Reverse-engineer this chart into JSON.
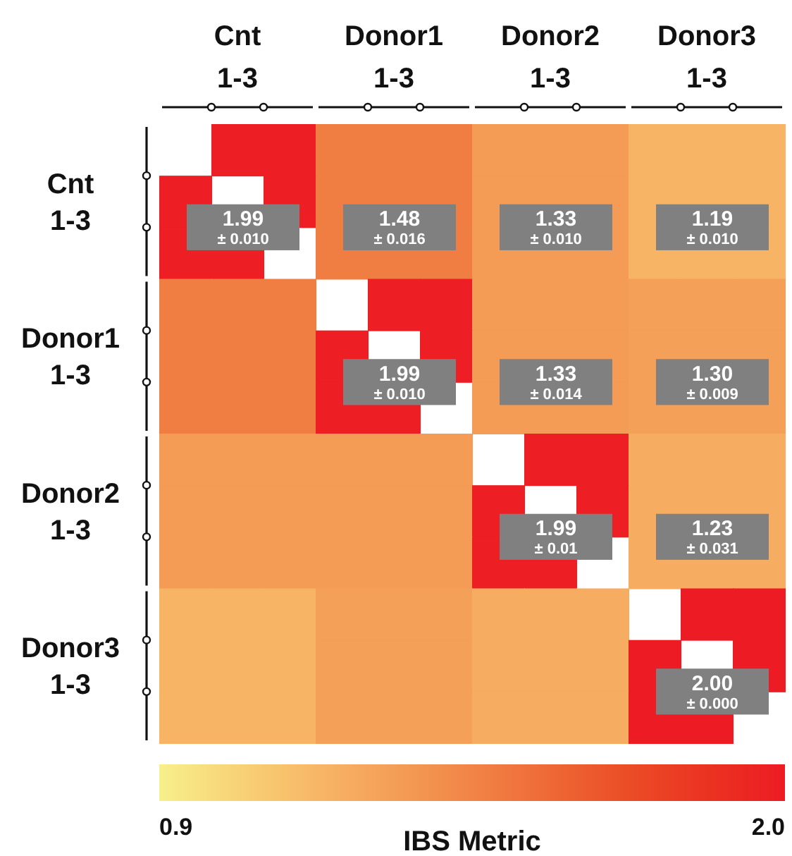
{
  "chart_data": {
    "type": "heatmap",
    "categories": [
      null,
      "Cnt 1-3",
      null,
      null,
      "Donor1 1-3",
      null,
      null,
      "Donor2 1-3",
      null,
      null,
      "Donor3 1-3",
      null
    ],
    "y_categories": [
      null,
      "Cnt 1-3",
      null,
      null,
      "Donor1 1-3",
      null,
      null,
      "Donor2 1-3",
      null,
      null,
      "Donor3 1-3",
      null
    ],
    "cells": [
      [
        null,
        1.99,
        1.99,
        1.48,
        1.48,
        1.48,
        1.33,
        1.33,
        1.33,
        1.19,
        1.19,
        1.19
      ],
      [
        1.99,
        null,
        1.99,
        1.48,
        1.48,
        1.48,
        1.33,
        1.33,
        1.33,
        1.19,
        1.19,
        1.19
      ],
      [
        1.99,
        1.99,
        null,
        1.48,
        1.48,
        1.48,
        1.33,
        1.33,
        1.33,
        1.19,
        1.19,
        1.19
      ],
      [
        1.48,
        1.48,
        1.48,
        null,
        1.99,
        1.99,
        1.33,
        1.33,
        1.33,
        1.3,
        1.3,
        1.3
      ],
      [
        1.48,
        1.48,
        1.48,
        1.99,
        null,
        1.99,
        1.33,
        1.33,
        1.33,
        1.3,
        1.3,
        1.3
      ],
      [
        1.48,
        1.48,
        1.48,
        1.99,
        1.99,
        null,
        1.33,
        1.33,
        1.33,
        1.3,
        1.3,
        1.3
      ],
      [
        1.33,
        1.33,
        1.33,
        1.33,
        1.33,
        1.33,
        null,
        1.99,
        1.99,
        1.23,
        1.23,
        1.23
      ],
      [
        1.33,
        1.33,
        1.33,
        1.33,
        1.33,
        1.33,
        1.99,
        null,
        1.99,
        1.23,
        1.23,
        1.23
      ],
      [
        1.33,
        1.33,
        1.33,
        1.33,
        1.33,
        1.33,
        1.99,
        1.99,
        null,
        1.23,
        1.23,
        1.23
      ],
      [
        1.19,
        1.19,
        1.19,
        1.3,
        1.3,
        1.3,
        1.23,
        1.23,
        1.23,
        null,
        2.0,
        2.0
      ],
      [
        1.19,
        1.19,
        1.19,
        1.3,
        1.3,
        1.3,
        1.23,
        1.23,
        1.23,
        2.0,
        null,
        2.0
      ],
      [
        1.19,
        1.19,
        1.19,
        1.3,
        1.3,
        1.3,
        1.23,
        1.23,
        1.23,
        2.0,
        2.0,
        null
      ]
    ],
    "cell_labels": [
      [
        null,
        null,
        null,
        null,
        null,
        null,
        null,
        null,
        null,
        null,
        null,
        null
      ],
      [
        null,
        "1.99 ± 0.010",
        null,
        null,
        "1.48 ± 0.016",
        null,
        null,
        "1.33 ± 0.010",
        null,
        null,
        "1.19 ± 0.010",
        null
      ],
      [
        null,
        null,
        null,
        null,
        null,
        null,
        null,
        null,
        null,
        null,
        null,
        null
      ],
      [
        null,
        null,
        null,
        null,
        null,
        null,
        null,
        null,
        null,
        null,
        null,
        null
      ],
      [
        null,
        null,
        null,
        null,
        "1.99 ± 0.010",
        null,
        null,
        "1.33 ± 0.014",
        null,
        null,
        "1.30 ± 0.009",
        null
      ],
      [
        null,
        null,
        null,
        null,
        null,
        null,
        null,
        null,
        null,
        null,
        null,
        null
      ],
      [
        null,
        null,
        null,
        null,
        null,
        null,
        null,
        null,
        null,
        null,
        null,
        null
      ],
      [
        null,
        null,
        null,
        null,
        null,
        null,
        null,
        "1.99 ± 0.01",
        null,
        null,
        "1.23 ± 0.031",
        null
      ],
      [
        null,
        null,
        null,
        null,
        null,
        null,
        null,
        null,
        null,
        null,
        null,
        null
      ],
      [
        null,
        null,
        null,
        null,
        null,
        null,
        null,
        null,
        null,
        null,
        null,
        null
      ],
      [
        null,
        null,
        null,
        null,
        null,
        null,
        null,
        null,
        null,
        null,
        "2.00 ± 0.000",
        null
      ],
      [
        null,
        null,
        null,
        null,
        null,
        null,
        null,
        null,
        null,
        null,
        null,
        null
      ]
    ],
    "clim": [
      0.9,
      2.0
    ],
    "cticks": [
      0.9,
      {
        "value": 2.0,
        "label": "2.0"
      }
    ],
    "clabel": "IBS Metric"
  }
}
